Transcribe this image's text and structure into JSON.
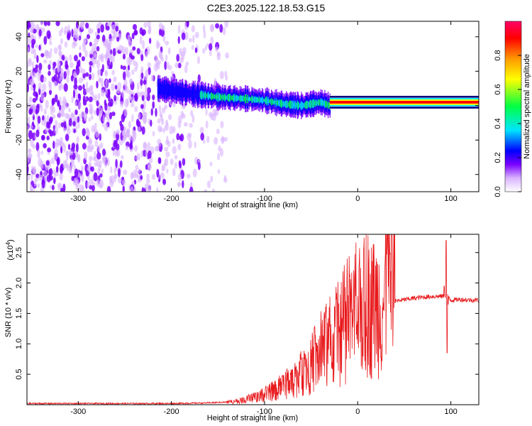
{
  "figure_title": "C2E3.2025.122.18.53.G15",
  "colors": {
    "snr_line": "#e8191c",
    "spectrum_main": "#6a00ff",
    "spectrum_light": "#c9b0ff"
  },
  "chart_data": [
    {
      "type": "heatmap",
      "xlabel": "Height of straight line (km)",
      "ylabel": "Frequency (Hz)",
      "xlim": [
        -355,
        130
      ],
      "ylim": [
        -50,
        49
      ],
      "xticks": [
        -300,
        -200,
        -100,
        0,
        100
      ],
      "yticks": [
        -40,
        -20,
        0,
        20,
        40
      ],
      "grid": false,
      "colorbar": {
        "label": "Normalized spectral amplitude",
        "range": [
          0,
          1
        ],
        "ticks": [
          "0.0",
          "0.2",
          "0.4",
          "0.6",
          "0.8"
        ],
        "colormap": [
          "#ffffff",
          "#d9b3ff",
          "#7a00ff",
          "#0000ff",
          "#00e5ff",
          "#00ff44",
          "#ffff00",
          "#ff9900",
          "#ff0000",
          "#ff0066"
        ]
      },
      "features": {
        "noise_region_x": [
          -355,
          -140
        ],
        "noise_freq_range": [
          -50,
          49
        ],
        "track_x": [
          -215,
          -30
        ],
        "track_center_hz": [
          [
            -215,
            10
          ],
          [
            -180,
            7
          ],
          [
            -150,
            5
          ],
          [
            -120,
            4
          ],
          [
            -100,
            3
          ],
          [
            -80,
            1
          ],
          [
            -60,
            0
          ],
          [
            -40,
            2
          ],
          [
            -30,
            0
          ]
        ],
        "carrier_x": [
          -30,
          130
        ],
        "carrier_hz": 2,
        "carrier_halfwidth_hz": 4
      }
    },
    {
      "type": "line",
      "xlabel": "Height of straight line (km)",
      "ylabel": "SNR (10 * v/v)",
      "y_multiplier": "(x10",
      "y_multiplier_exp": "4",
      "y_multiplier_close": ")",
      "xlim": [
        -355,
        130
      ],
      "ylim": [
        0,
        2.8
      ],
      "xticks": [
        -300,
        -200,
        -100,
        0,
        100
      ],
      "yticks": [
        0.5,
        1.0,
        1.5,
        2.0,
        2.5
      ],
      "ytick_labels": [
        "0.5",
        "1.0",
        "1.5",
        "2.0",
        "2.5"
      ],
      "grid": false,
      "series": [
        {
          "x": [
            -355,
            -300,
            -250,
            -200,
            -160,
            -130,
            -115,
            -100,
            -85,
            -70,
            -60,
            -50,
            -40,
            -30,
            -20,
            -10,
            0,
            10,
            20,
            30,
            40,
            60,
            80,
            90,
            96,
            100,
            110,
            120,
            130
          ],
          "y": [
            0.02,
            0.02,
            0.02,
            0.02,
            0.03,
            0.05,
            0.1,
            0.16,
            0.25,
            0.38,
            0.5,
            0.62,
            0.8,
            0.95,
            1.1,
            1.3,
            1.45,
            1.55,
            1.62,
            1.68,
            1.7,
            1.75,
            1.78,
            1.78,
            1.8,
            1.72,
            1.73,
            1.72,
            1.72
          ],
          "spikes": [
            [
              95,
              2.7
            ],
            [
              96,
              0.85
            ],
            [
              93,
              1.95
            ],
            [
              97,
              1.65
            ]
          ]
        }
      ]
    }
  ]
}
